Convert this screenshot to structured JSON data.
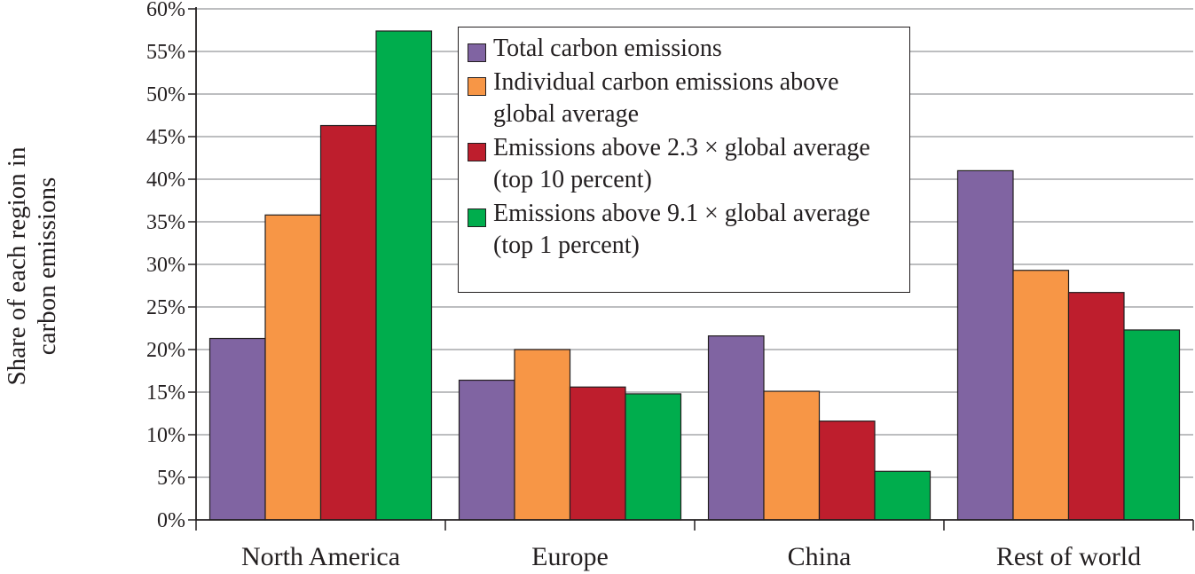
{
  "chart_data": {
    "type": "bar",
    "title": "",
    "xlabel": "",
    "ylabel": "Share of each region in carbon emissions",
    "ylabel_lines": [
      "Share of each region in",
      "carbon emissions"
    ],
    "ylim": [
      0,
      60
    ],
    "yticks": [
      "0%",
      "5%",
      "10%",
      "15%",
      "20%",
      "25%",
      "30%",
      "35%",
      "40%",
      "45%",
      "50%",
      "55%",
      "60%"
    ],
    "ytick_values": [
      0,
      5,
      10,
      15,
      20,
      25,
      30,
      35,
      40,
      45,
      50,
      55,
      60
    ],
    "grid": true,
    "legend_position": "top-center",
    "categories": [
      "North America",
      "Europe",
      "China",
      "Rest of world"
    ],
    "series": [
      {
        "name": "Total carbon emissions",
        "color": "#8064a2",
        "values": [
          21.3,
          16.4,
          21.6,
          41.0
        ]
      },
      {
        "name": "Individual carbon emissions above global average",
        "color": "#f79646",
        "values": [
          35.8,
          20.0,
          15.1,
          29.3
        ]
      },
      {
        "name": "Emissions above 2.3 × global average (top 10 percent)",
        "color": "#be1e2d",
        "values": [
          46.3,
          15.6,
          11.6,
          26.7
        ]
      },
      {
        "name": "Emissions above 9.1 × global average (top 1 percent)",
        "color": "#00ad4d",
        "values": [
          57.4,
          14.8,
          5.7,
          22.3
        ]
      }
    ]
  },
  "legend": {
    "items": [
      {
        "label": "Total carbon emissions",
        "color": "#8064a2"
      },
      {
        "label": "Individual carbon emissions above\nglobal average",
        "color": "#f79646"
      },
      {
        "label": "Emissions above 2.3 × global average\n(top 10 percent)",
        "color": "#be1e2d"
      },
      {
        "label": "Emissions above 9.1 × global average\n(top 1 percent)",
        "color": "#00ad4d"
      }
    ]
  }
}
